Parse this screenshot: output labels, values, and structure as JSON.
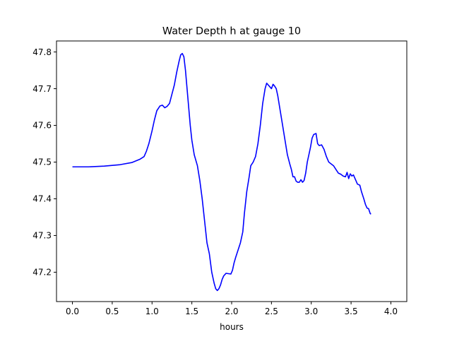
{
  "chart_data": {
    "type": "line",
    "title": "Water Depth h at gauge 10",
    "xlabel": "hours",
    "ylabel": "",
    "xlim": [
      -0.2,
      4.2
    ],
    "ylim": [
      47.12,
      47.83
    ],
    "xticks": [
      {
        "value": 0.0,
        "label": "0.0"
      },
      {
        "value": 0.5,
        "label": "0.5"
      },
      {
        "value": 1.0,
        "label": "1.0"
      },
      {
        "value": 1.5,
        "label": "1.5"
      },
      {
        "value": 2.0,
        "label": "2.0"
      },
      {
        "value": 2.5,
        "label": "2.5"
      },
      {
        "value": 3.0,
        "label": "3.0"
      },
      {
        "value": 3.5,
        "label": "3.5"
      },
      {
        "value": 4.0,
        "label": "4.0"
      }
    ],
    "yticks": [
      {
        "value": 47.2,
        "label": "47.2"
      },
      {
        "value": 47.3,
        "label": "47.3"
      },
      {
        "value": 47.4,
        "label": "47.4"
      },
      {
        "value": 47.5,
        "label": "47.5"
      },
      {
        "value": 47.6,
        "label": "47.6"
      },
      {
        "value": 47.7,
        "label": "47.7"
      },
      {
        "value": 47.8,
        "label": "47.8"
      }
    ],
    "grid": false,
    "legend": "none",
    "series": [
      {
        "color": "#0000ff",
        "points": [
          [
            0.0,
            47.487
          ],
          [
            0.2,
            47.487
          ],
          [
            0.4,
            47.489
          ],
          [
            0.6,
            47.493
          ],
          [
            0.75,
            47.499
          ],
          [
            0.85,
            47.508
          ],
          [
            0.9,
            47.515
          ],
          [
            0.93,
            47.53
          ],
          [
            0.96,
            47.55
          ],
          [
            1.0,
            47.585
          ],
          [
            1.03,
            47.615
          ],
          [
            1.06,
            47.64
          ],
          [
            1.1,
            47.653
          ],
          [
            1.13,
            47.655
          ],
          [
            1.16,
            47.648
          ],
          [
            1.19,
            47.652
          ],
          [
            1.22,
            47.66
          ],
          [
            1.25,
            47.685
          ],
          [
            1.28,
            47.71
          ],
          [
            1.31,
            47.745
          ],
          [
            1.34,
            47.775
          ],
          [
            1.36,
            47.792
          ],
          [
            1.38,
            47.796
          ],
          [
            1.4,
            47.787
          ],
          [
            1.42,
            47.75
          ],
          [
            1.44,
            47.7
          ],
          [
            1.46,
            47.65
          ],
          [
            1.48,
            47.6
          ],
          [
            1.5,
            47.56
          ],
          [
            1.53,
            47.52
          ],
          [
            1.57,
            47.49
          ],
          [
            1.6,
            47.45
          ],
          [
            1.63,
            47.4
          ],
          [
            1.66,
            47.34
          ],
          [
            1.69,
            47.28
          ],
          [
            1.72,
            47.25
          ],
          [
            1.75,
            47.2
          ],
          [
            1.78,
            47.17
          ],
          [
            1.8,
            47.155
          ],
          [
            1.82,
            47.15
          ],
          [
            1.84,
            47.155
          ],
          [
            1.86,
            47.165
          ],
          [
            1.88,
            47.18
          ],
          [
            1.9,
            47.19
          ],
          [
            1.93,
            47.197
          ],
          [
            1.96,
            47.196
          ],
          [
            1.99,
            47.195
          ],
          [
            2.01,
            47.205
          ],
          [
            2.03,
            47.225
          ],
          [
            2.05,
            47.24
          ],
          [
            2.08,
            47.26
          ],
          [
            2.11,
            47.28
          ],
          [
            2.14,
            47.31
          ],
          [
            2.16,
            47.36
          ],
          [
            2.19,
            47.42
          ],
          [
            2.22,
            47.46
          ],
          [
            2.24,
            47.49
          ],
          [
            2.27,
            47.5
          ],
          [
            2.3,
            47.515
          ],
          [
            2.33,
            47.55
          ],
          [
            2.36,
            47.6
          ],
          [
            2.39,
            47.66
          ],
          [
            2.42,
            47.7
          ],
          [
            2.44,
            47.715
          ],
          [
            2.46,
            47.71
          ],
          [
            2.48,
            47.705
          ],
          [
            2.5,
            47.7
          ],
          [
            2.52,
            47.712
          ],
          [
            2.54,
            47.707
          ],
          [
            2.56,
            47.7
          ],
          [
            2.58,
            47.68
          ],
          [
            2.61,
            47.64
          ],
          [
            2.64,
            47.6
          ],
          [
            2.67,
            47.56
          ],
          [
            2.7,
            47.52
          ],
          [
            2.73,
            47.495
          ],
          [
            2.75,
            47.48
          ],
          [
            2.77,
            47.46
          ],
          [
            2.79,
            47.46
          ],
          [
            2.81,
            47.448
          ],
          [
            2.83,
            47.445
          ],
          [
            2.85,
            47.445
          ],
          [
            2.87,
            47.452
          ],
          [
            2.89,
            47.445
          ],
          [
            2.91,
            47.45
          ],
          [
            2.93,
            47.47
          ],
          [
            2.95,
            47.5
          ],
          [
            2.97,
            47.52
          ],
          [
            2.99,
            47.54
          ],
          [
            3.01,
            47.565
          ],
          [
            3.03,
            47.575
          ],
          [
            3.06,
            47.578
          ],
          [
            3.08,
            47.55
          ],
          [
            3.1,
            47.545
          ],
          [
            3.13,
            47.547
          ],
          [
            3.16,
            47.535
          ],
          [
            3.19,
            47.515
          ],
          [
            3.22,
            47.5
          ],
          [
            3.25,
            47.495
          ],
          [
            3.28,
            47.49
          ],
          [
            3.31,
            47.48
          ],
          [
            3.34,
            47.47
          ],
          [
            3.37,
            47.467
          ],
          [
            3.4,
            47.462
          ],
          [
            3.43,
            47.46
          ],
          [
            3.45,
            47.472
          ],
          [
            3.47,
            47.455
          ],
          [
            3.49,
            47.468
          ],
          [
            3.51,
            47.462
          ],
          [
            3.53,
            47.465
          ],
          [
            3.55,
            47.455
          ],
          [
            3.58,
            47.44
          ],
          [
            3.61,
            47.437
          ],
          [
            3.63,
            47.42
          ],
          [
            3.66,
            47.4
          ],
          [
            3.68,
            47.385
          ],
          [
            3.7,
            47.375
          ],
          [
            3.72,
            47.373
          ],
          [
            3.74,
            47.36
          ],
          [
            3.75,
            47.358
          ]
        ]
      }
    ]
  }
}
